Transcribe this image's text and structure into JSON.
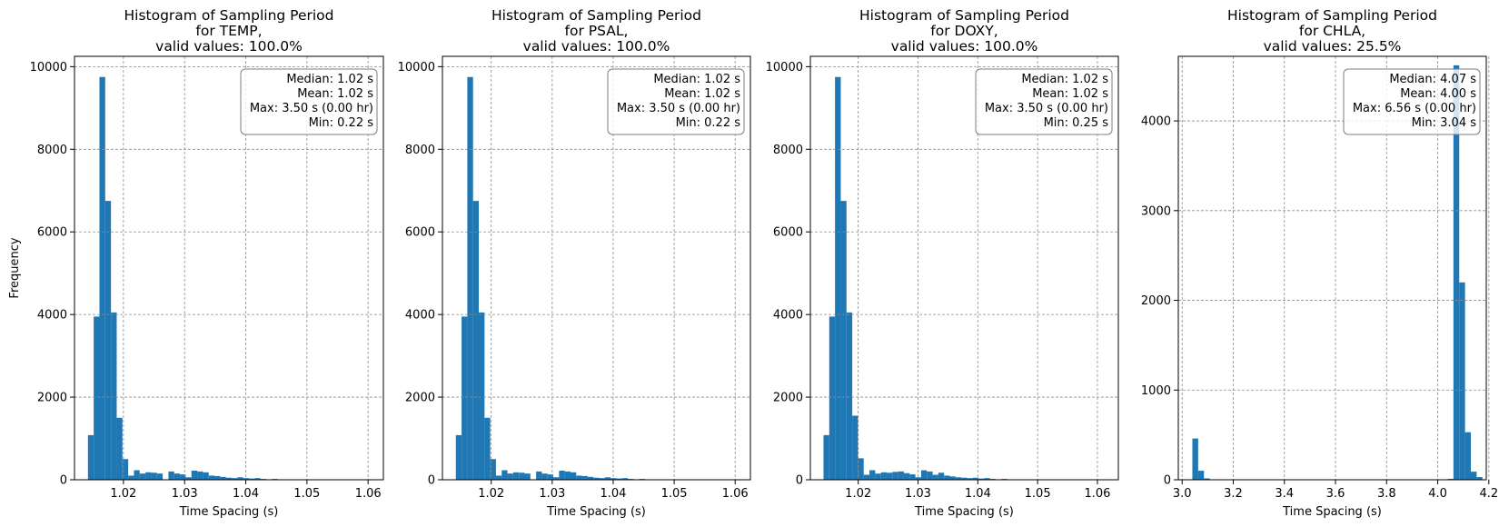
{
  "chart_data": [
    {
      "type": "histogram",
      "title_lines": [
        "Histogram of Sampling Period",
        "for TEMP,",
        "valid values: 100.0%"
      ],
      "xlabel": "Time Spacing (s)",
      "ylabel": "Frequency",
      "xlim": [
        1.012,
        1.0625
      ],
      "ylim": [
        0,
        10250
      ],
      "xticks": [
        1.02,
        1.03,
        1.04,
        1.05,
        1.06
      ],
      "xtick_labels": [
        "1.02",
        "1.03",
        "1.04",
        "1.05",
        "1.06"
      ],
      "yticks": [
        0,
        2000,
        4000,
        6000,
        8000,
        10000
      ],
      "ytick_labels": [
        "0",
        "2000",
        "4000",
        "6000",
        "8000",
        "10000"
      ],
      "bin_start": 1.0142,
      "bin_width": 0.00094,
      "counts": [
        1080,
        3950,
        9750,
        6750,
        4050,
        1500,
        500,
        100,
        230,
        150,
        180,
        170,
        150,
        5,
        200,
        150,
        130,
        60,
        220,
        200,
        180,
        100,
        90,
        70,
        50,
        40,
        60,
        40,
        30,
        40,
        20,
        10,
        20,
        10,
        10,
        10,
        10,
        10,
        10,
        10
      ],
      "stats": [
        "Median: 1.02 s",
        "Mean: 1.02 s",
        "Max: 3.50 s (0.00 hr)",
        "Min: 0.22 s"
      ],
      "grid": true,
      "color": "#1f77b4"
    },
    {
      "type": "histogram",
      "title_lines": [
        "Histogram of Sampling Period",
        "for PSAL,",
        "valid values: 100.0%"
      ],
      "xlabel": "Time Spacing (s)",
      "ylabel": "",
      "xlim": [
        1.012,
        1.0625
      ],
      "ylim": [
        0,
        10250
      ],
      "xticks": [
        1.02,
        1.03,
        1.04,
        1.05,
        1.06
      ],
      "xtick_labels": [
        "1.02",
        "1.03",
        "1.04",
        "1.05",
        "1.06"
      ],
      "yticks": [
        0,
        2000,
        4000,
        6000,
        8000,
        10000
      ],
      "ytick_labels": [
        "0",
        "2000",
        "4000",
        "6000",
        "8000",
        "10000"
      ],
      "bin_start": 1.0142,
      "bin_width": 0.00094,
      "counts": [
        1080,
        3950,
        9750,
        6750,
        4050,
        1500,
        500,
        100,
        230,
        150,
        180,
        170,
        150,
        5,
        200,
        150,
        130,
        60,
        220,
        200,
        180,
        100,
        90,
        70,
        50,
        40,
        60,
        40,
        30,
        40,
        20,
        10,
        20,
        10,
        10,
        10,
        10,
        10,
        10,
        10
      ],
      "stats": [
        "Median: 1.02 s",
        "Mean: 1.02 s",
        "Max: 3.50 s (0.00 hr)",
        "Min: 0.22 s"
      ],
      "grid": true,
      "color": "#1f77b4"
    },
    {
      "type": "histogram",
      "title_lines": [
        "Histogram of Sampling Period",
        "for DOXY,",
        "valid values: 100.0%"
      ],
      "xlabel": "Time Spacing (s)",
      "ylabel": "",
      "xlim": [
        1.012,
        1.0635
      ],
      "ylim": [
        0,
        10250
      ],
      "xticks": [
        1.02,
        1.03,
        1.04,
        1.05,
        1.06
      ],
      "xtick_labels": [
        "1.02",
        "1.03",
        "1.04",
        "1.05",
        "1.06"
      ],
      "yticks": [
        0,
        2000,
        4000,
        6000,
        8000,
        10000
      ],
      "ytick_labels": [
        "0",
        "2000",
        "4000",
        "6000",
        "8000",
        "10000"
      ],
      "bin_start": 1.0142,
      "bin_width": 0.00096,
      "counts": [
        1080,
        3950,
        9750,
        6750,
        4050,
        1550,
        520,
        120,
        230,
        150,
        180,
        170,
        190,
        200,
        160,
        130,
        60,
        230,
        200,
        120,
        170,
        100,
        80,
        60,
        50,
        40,
        50,
        30,
        40,
        20,
        10,
        20,
        10,
        10,
        10,
        10,
        10,
        10,
        10,
        10
      ],
      "stats": [
        "Median: 1.02 s",
        "Mean: 1.02 s",
        "Max: 3.50 s (0.00 hr)",
        "Min: 0.25 s"
      ],
      "grid": true,
      "color": "#1f77b4"
    },
    {
      "type": "histogram",
      "title_lines": [
        "Histogram of Sampling Period",
        "for CHLA,",
        "valid values: 25.5%"
      ],
      "xlabel": "Time Spacing (s)",
      "ylabel": "",
      "xlim": [
        2.985,
        4.19
      ],
      "ylim": [
        0,
        4720
      ],
      "xticks": [
        3.0,
        3.2,
        3.4,
        3.6,
        3.8,
        4.0,
        4.2
      ],
      "xtick_labels": [
        "3.0",
        "3.2",
        "3.4",
        "3.6",
        "3.8",
        "4.0",
        "4.2"
      ],
      "yticks": [
        0,
        1000,
        2000,
        3000,
        4000
      ],
      "ytick_labels": [
        "0",
        "1000",
        "2000",
        "3000",
        "4000"
      ],
      "bin_start": 3.04,
      "bin_width": 0.0227,
      "counts": [
        460,
        100,
        15,
        5,
        0,
        0,
        0,
        0,
        0,
        0,
        0,
        0,
        0,
        0,
        0,
        0,
        0,
        0,
        0,
        0,
        0,
        0,
        0,
        0,
        0,
        0,
        0,
        0,
        0,
        0,
        0,
        0,
        0,
        0,
        0,
        0,
        0,
        0,
        0,
        0,
        0,
        0,
        0,
        0,
        10,
        4620,
        2200,
        530,
        90,
        30
      ],
      "stats": [
        "Median: 4.07 s",
        "Mean: 4.00 s",
        "Max: 6.56 s (0.00 hr)",
        "Min: 3.04 s"
      ],
      "grid": true,
      "color": "#1f77b4"
    }
  ]
}
